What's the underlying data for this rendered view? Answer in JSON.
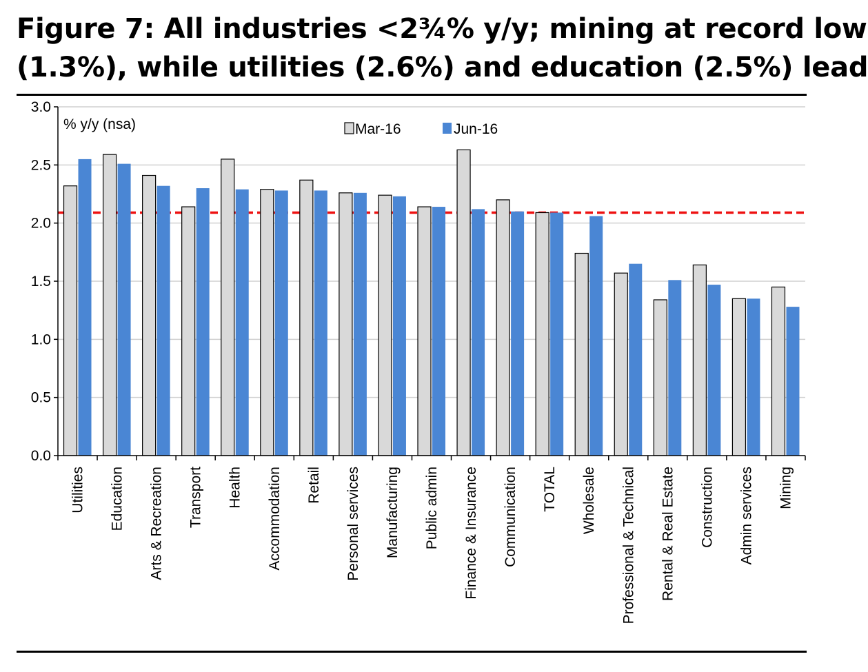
{
  "title_lines": [
    "Figure 7: All industries <2¾% y/y; mining at record low",
    "(1.3%), while utilities (2.6%) and education (2.5%) lead"
  ],
  "colors": {
    "mar_fill": "#d9d9d9",
    "jun_fill": "#4a86d4",
    "reference_line": "#ee1111",
    "grid": "#d0d0d0",
    "axis": "#000000"
  },
  "chart_data": {
    "type": "bar",
    "title": "Figure 7: All industries <2¾% y/y; mining at record low (1.3%), while utilities (2.6%) and education (2.5%) lead",
    "unit_label": "% y/y (nsa)",
    "ylim": [
      0,
      3.0
    ],
    "yticks": [
      0.0,
      0.5,
      1.0,
      1.5,
      2.0,
      2.5,
      3.0
    ],
    "ytick_labels": [
      "0.0",
      "0.5",
      "1.0",
      "1.5",
      "2.0",
      "2.5",
      "3.0"
    ],
    "grid": true,
    "legend_position": "top-center",
    "categories": [
      "Utilities",
      "Education",
      "Arts & Recreation",
      "Transport",
      "Health",
      "Accommodation",
      "Retail",
      "Personal services",
      "Manufacturing",
      "Public admin",
      "Finance & Insurance",
      "Communication",
      "TOTAL",
      "Wholesale",
      "Professional & Technical",
      "Rental & Real Estate",
      "Construction",
      "Admin services",
      "Mining"
    ],
    "series": [
      {
        "name": "Mar-16",
        "values": [
          2.32,
          2.59,
          2.41,
          2.14,
          2.55,
          2.29,
          2.37,
          2.26,
          2.24,
          2.14,
          2.63,
          2.2,
          2.09,
          1.74,
          1.57,
          1.34,
          1.64,
          1.35,
          1.45
        ]
      },
      {
        "name": "Jun-16",
        "values": [
          2.55,
          2.51,
          2.32,
          2.3,
          2.29,
          2.28,
          2.28,
          2.26,
          2.23,
          2.14,
          2.12,
          2.1,
          2.09,
          2.06,
          1.65,
          1.51,
          1.47,
          1.35,
          1.28
        ]
      }
    ],
    "reference_line": {
      "value": 2.09,
      "style": "dashed"
    }
  }
}
